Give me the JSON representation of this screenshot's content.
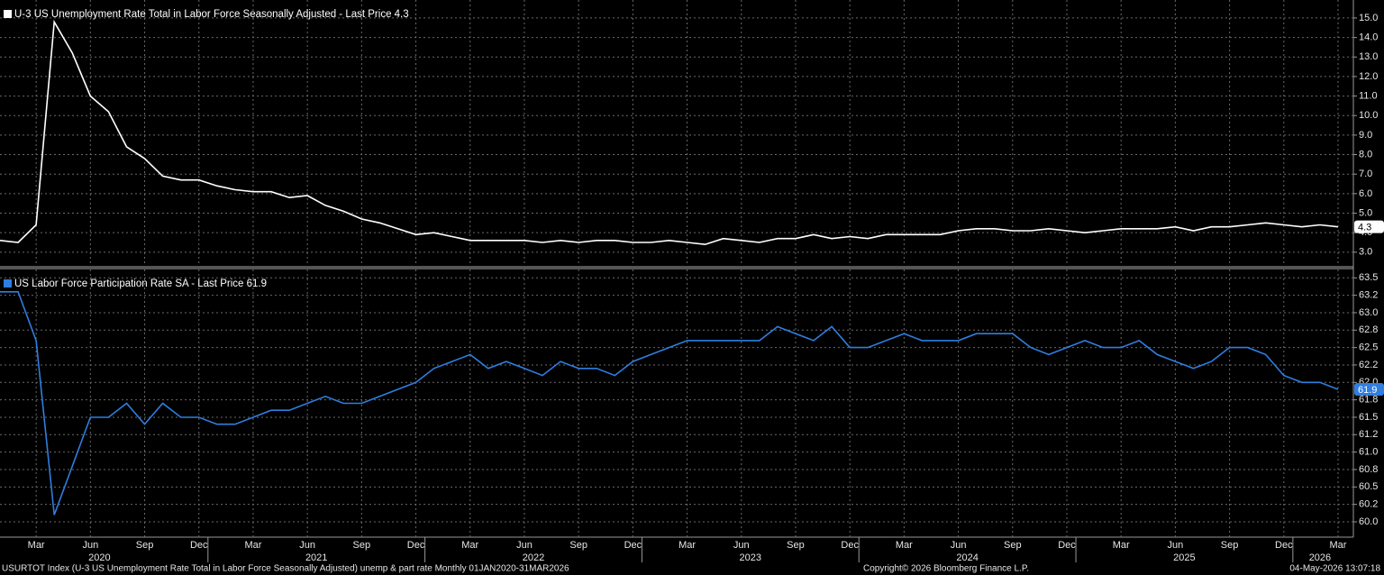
{
  "chart_data": [
    {
      "type": "line",
      "ylim": [
        2.3,
        15.92
      ],
      "yticks": [
        {
          "value": 3,
          "label": "3.0"
        },
        {
          "value": 4,
          "label": "4.0"
        },
        {
          "value": 5,
          "label": "5.0"
        },
        {
          "value": 6,
          "label": "6.0"
        },
        {
          "value": 7,
          "label": "7.0"
        },
        {
          "value": 8,
          "label": "8.0"
        },
        {
          "value": 9,
          "label": "9.0"
        },
        {
          "value": 10,
          "label": "10.0"
        },
        {
          "value": 11,
          "label": "11.0"
        },
        {
          "value": 12,
          "label": "12.0"
        },
        {
          "value": 13,
          "label": "13.0"
        },
        {
          "value": 14,
          "label": "14.0"
        },
        {
          "value": 15,
          "label": "15.0"
        }
      ],
      "grid": true,
      "series": [
        {
          "name": "U-3 US Unemployment Rate Total in Labor Force Seasonally Adjusted - Last Price 4.3",
          "color": "#ffffff",
          "values": [
            3.6,
            3.5,
            4.4,
            14.8,
            13.2,
            11.0,
            10.2,
            8.4,
            7.8,
            6.9,
            6.7,
            6.7,
            6.4,
            6.2,
            6.1,
            6.1,
            5.8,
            5.9,
            5.4,
            5.1,
            4.7,
            4.5,
            4.2,
            3.9,
            4.0,
            3.8,
            3.6,
            3.6,
            3.6,
            3.6,
            3.5,
            3.6,
            3.5,
            3.6,
            3.6,
            3.5,
            3.5,
            3.6,
            3.5,
            3.4,
            3.7,
            3.6,
            3.5,
            3.7,
            3.7,
            3.9,
            3.7,
            3.8,
            3.7,
            3.9,
            3.9,
            3.9,
            3.9,
            4.1,
            4.2,
            4.2,
            4.1,
            4.1,
            4.2,
            4.1,
            4.0,
            4.1,
            4.2,
            4.2,
            4.2,
            4.3,
            4.1,
            4.3,
            4.3,
            4.4,
            4.5,
            4.4,
            4.3,
            4.4,
            4.3
          ]
        }
      ]
    },
    {
      "type": "line",
      "ylim": [
        59.78,
        63.62
      ],
      "yticks": [
        {
          "value": 60,
          "label": "60.0"
        },
        {
          "value": 60.25,
          "label": "60.2"
        },
        60.5,
        {
          "value": 60.75,
          "label": "60.8"
        },
        {
          "value": 61,
          "label": "61.0"
        },
        {
          "value": 61.25,
          "label": "61.2"
        },
        61.5,
        {
          "value": 61.75,
          "label": "61.8"
        },
        {
          "value": 62,
          "label": "62.0"
        },
        {
          "value": 62.25,
          "label": "62.2"
        },
        62.5,
        {
          "value": 62.75,
          "label": "62.8"
        },
        {
          "value": 63,
          "label": "63.0"
        },
        {
          "value": 63.25,
          "label": "63.2"
        },
        63.5
      ],
      "grid": true,
      "categories": [
        null,
        null,
        "Mar",
        null,
        null,
        "Jun",
        null,
        null,
        "Sep",
        null,
        null,
        "Dec",
        null,
        null,
        "Mar",
        null,
        null,
        "Jun",
        null,
        null,
        "Sep",
        null,
        null,
        "Dec",
        null,
        null,
        "Mar",
        null,
        null,
        "Jun",
        null,
        null,
        "Sep",
        null,
        null,
        "Dec",
        null,
        null,
        "Mar",
        null,
        null,
        "Jun",
        null,
        null,
        "Sep",
        null,
        null,
        "Dec",
        null,
        null,
        "Mar",
        null,
        null,
        "Jun",
        null,
        null,
        "Sep",
        null,
        null,
        "Dec",
        null,
        null,
        "Mar",
        null,
        null,
        "Jun",
        null,
        null,
        "Sep",
        null,
        null,
        "Dec",
        null,
        null,
        "Mar"
      ],
      "years": [
        2020,
        2021,
        2022,
        2023,
        2024,
        2025,
        2026
      ],
      "series": [
        {
          "name": "US Labor Force Participation Rate SA - Last Price 61.9",
          "color": "#2f7ee0",
          "values": [
            63.3,
            63.3,
            62.6,
            60.1,
            60.8,
            61.5,
            61.5,
            61.7,
            61.4,
            61.7,
            61.5,
            61.5,
            61.4,
            61.4,
            61.5,
            61.6,
            61.6,
            61.7,
            61.8,
            61.7,
            61.7,
            61.8,
            61.9,
            62.0,
            62.2,
            62.3,
            62.4,
            62.2,
            62.3,
            62.2,
            62.1,
            62.3,
            62.2,
            62.2,
            62.1,
            62.3,
            62.4,
            62.5,
            62.6,
            62.6,
            62.6,
            62.6,
            62.6,
            62.8,
            62.7,
            62.6,
            62.8,
            62.5,
            62.5,
            62.6,
            62.7,
            62.6,
            62.6,
            62.6,
            62.7,
            62.7,
            62.7,
            62.5,
            62.4,
            62.5,
            62.6,
            62.5,
            62.5,
            62.6,
            62.4,
            62.3,
            62.2,
            62.3,
            62.5,
            62.5,
            62.4,
            62.1,
            62.0,
            62.0,
            61.9
          ]
        }
      ]
    }
  ],
  "footer": {
    "description": "USURTOT Index (U-3 US Unemployment Rate Total in Labor Force Seasonally Adjusted) unemp & part rate Monthly 01JAN2020-31MAR2026",
    "copyright": "Copyright© 2026 Bloomberg Finance L.P.",
    "timestamp": "04-May-2026 13:07:18"
  }
}
